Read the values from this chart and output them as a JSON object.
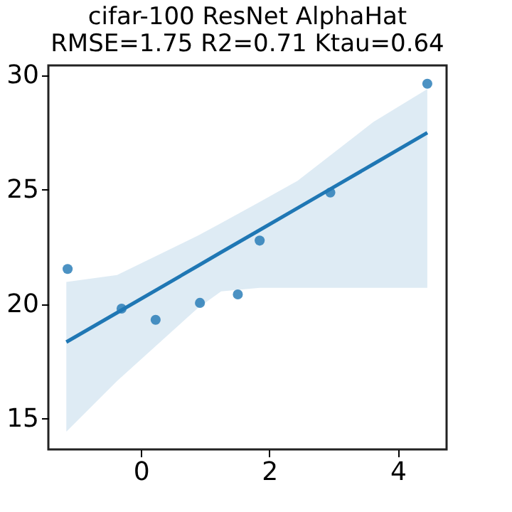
{
  "chart_data": {
    "type": "scatter",
    "title": "cifar-100 ResNet AlphaHat",
    "subtitle": "RMSE=1.75  R2=0.71  Ktau=0.64",
    "x": [
      -1.14,
      -0.3,
      0.23,
      0.92,
      1.51,
      1.85,
      2.95,
      4.46
    ],
    "series": [
      {
        "color": "#1f77b4",
        "marker": "circle",
        "values": [
          21.54,
          19.81,
          19.32,
          20.06,
          20.43,
          22.78,
          24.88,
          29.63
        ]
      },
      {
        "type": "line",
        "color": "#1f77b4",
        "x": [
          -1.16,
          -0.37,
          0.89,
          1.25,
          1.85,
          2.44,
          3.62,
          4.46
        ],
        "values": [
          18.35,
          19.63,
          21.68,
          22.27,
          23.24,
          24.2,
          26.12,
          27.49
        ],
        "lower": [
          14.44,
          16.65,
          19.84,
          20.56,
          20.72,
          20.72,
          20.72,
          20.72
        ],
        "upper": [
          20.97,
          21.28,
          23.0,
          23.54,
          24.47,
          25.39,
          27.96,
          29.4
        ]
      }
    ],
    "grid": false,
    "xlim": [
      -1.44,
      4.76
    ],
    "xticks": [
      0,
      2,
      4
    ],
    "ylim": [
      13.66,
      30.43
    ],
    "yticks": [
      15,
      20,
      25,
      30
    ]
  }
}
